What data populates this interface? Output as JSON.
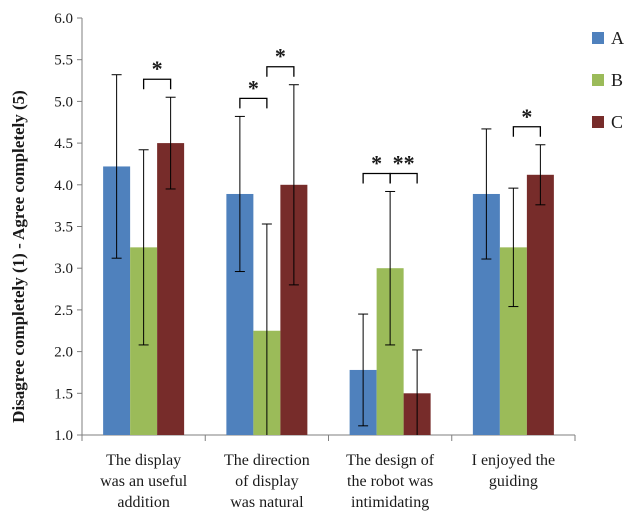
{
  "chart_data": {
    "type": "bar",
    "title": "",
    "xlabel": "",
    "ylabel": "Disagree completely  (1) - Agree completely  (5)",
    "ylim": [
      1.0,
      6.0
    ],
    "yticks": [
      "1.0",
      "1.5",
      "2.0",
      "2.5",
      "3.0",
      "3.5",
      "4.0",
      "4.5",
      "5.0",
      "5.5",
      "6.0"
    ],
    "grid": false,
    "legend_position": "right",
    "categories": [
      [
        "The display",
        "was an useful",
        "addition"
      ],
      [
        "The direction",
        "of display",
        "was natural"
      ],
      [
        "The design of",
        "the robot was",
        "intimidating"
      ],
      [
        "I enjoyed the",
        "guiding",
        ""
      ]
    ],
    "series": [
      {
        "name": "A",
        "color": "#4F81BD",
        "values": [
          4.22,
          3.89,
          1.78,
          3.89
        ],
        "err": [
          1.1,
          0.93,
          0.67,
          0.78
        ]
      },
      {
        "name": "B",
        "color": "#9BBB59",
        "values": [
          3.25,
          2.25,
          3.0,
          3.25
        ],
        "err": [
          1.17,
          1.28,
          0.92,
          0.71
        ]
      },
      {
        "name": "C",
        "color": "#772C2A",
        "values": [
          4.5,
          4.0,
          1.5,
          4.12
        ],
        "err": [
          0.55,
          1.2,
          0.52,
          0.36
        ]
      }
    ],
    "significance": [
      {
        "category": 0,
        "from": 1,
        "to": 2,
        "label": "*"
      },
      {
        "category": 1,
        "from": 0,
        "to": 1,
        "label": "*"
      },
      {
        "category": 1,
        "from": 1,
        "to": 2,
        "label": "*"
      },
      {
        "category": 2,
        "from": 0,
        "to": 1,
        "label": "*"
      },
      {
        "category": 2,
        "from": 1,
        "to": 2,
        "label": "**"
      },
      {
        "category": 3,
        "from": 1,
        "to": 2,
        "label": "*"
      }
    ]
  }
}
